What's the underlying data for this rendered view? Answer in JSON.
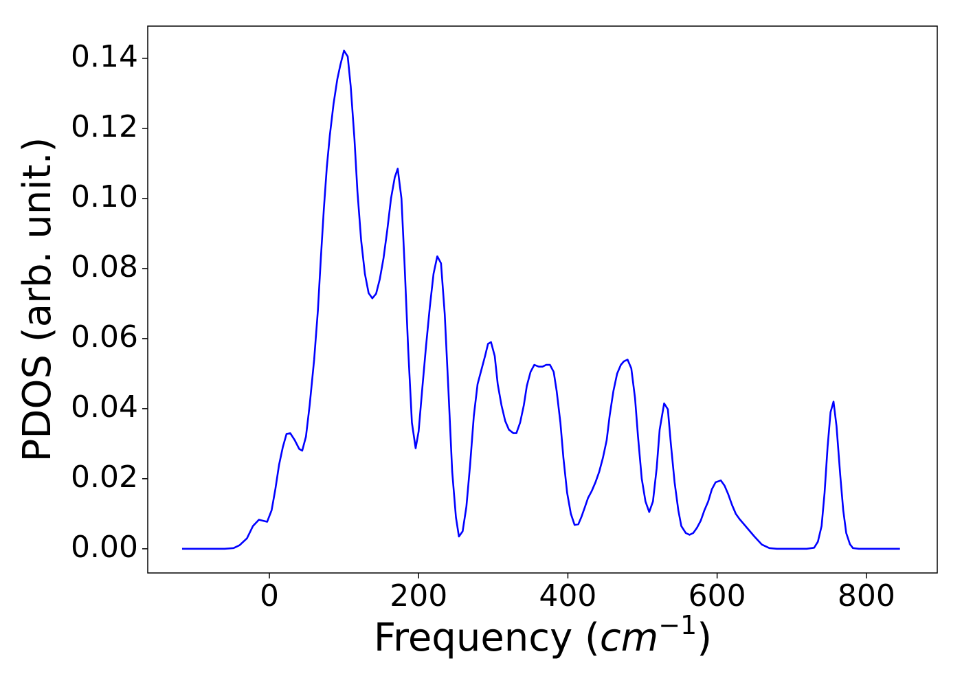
{
  "chart_data": {
    "type": "line",
    "ylabel": "PDOS (arb. unit.)",
    "xlabel_parts": {
      "text": "Frequency (",
      "math": "cm",
      "sup": "−1",
      "close": ")"
    },
    "x": [
      -117,
      -60,
      -48,
      -40,
      -30,
      -22,
      -14,
      -3,
      3,
      8,
      13,
      18,
      23,
      28,
      34,
      40,
      44,
      49,
      54,
      60,
      65,
      69,
      73,
      77,
      81,
      86,
      91,
      95,
      100,
      105,
      109,
      114,
      118,
      123,
      128,
      133,
      138,
      143,
      148,
      153,
      158,
      163,
      168,
      172,
      177,
      181,
      186,
      191,
      196,
      200,
      205,
      210,
      215,
      220,
      225,
      230,
      235,
      240,
      245,
      250,
      254,
      259,
      264,
      269,
      274,
      279,
      284,
      289,
      293,
      297,
      302,
      306,
      311,
      316,
      321,
      327,
      331,
      336,
      341,
      345,
      350,
      355,
      361,
      366,
      371,
      376,
      381,
      385,
      390,
      394,
      399,
      404,
      409,
      414,
      418,
      423,
      427,
      432,
      437,
      442,
      447,
      452,
      456,
      461,
      466,
      471,
      475,
      480,
      485,
      490,
      494,
      499,
      504,
      509,
      514,
      519,
      523,
      529,
      534,
      538,
      543,
      548,
      552,
      558,
      563,
      568,
      573,
      578,
      583,
      588,
      593,
      598,
      605,
      610,
      615,
      620,
      625,
      630,
      640,
      650,
      660,
      670,
      680,
      720,
      730,
      735,
      740,
      744,
      748,
      752,
      756,
      760,
      765,
      769,
      773,
      778,
      782,
      790,
      845
    ],
    "series": [
      {
        "color": "#0000ff",
        "values": [
          0,
          0,
          0.0002,
          0.001,
          0.003,
          0.0065,
          0.0083,
          0.0077,
          0.011,
          0.017,
          0.024,
          0.029,
          0.0328,
          0.033,
          0.031,
          0.0285,
          0.028,
          0.032,
          0.041,
          0.054,
          0.068,
          0.083,
          0.097,
          0.109,
          0.118,
          0.127,
          0.134,
          0.138,
          0.1422,
          0.1405,
          0.132,
          0.117,
          0.102,
          0.088,
          0.0785,
          0.073,
          0.0715,
          0.0728,
          0.077,
          0.083,
          0.091,
          0.1,
          0.106,
          0.1085,
          0.1,
          0.082,
          0.057,
          0.036,
          0.0287,
          0.0335,
          0.046,
          0.058,
          0.069,
          0.0785,
          0.0835,
          0.0815,
          0.067,
          0.045,
          0.022,
          0.009,
          0.0035,
          0.005,
          0.012,
          0.024,
          0.038,
          0.047,
          0.051,
          0.055,
          0.0585,
          0.059,
          0.055,
          0.047,
          0.041,
          0.0365,
          0.034,
          0.033,
          0.033,
          0.036,
          0.041,
          0.0465,
          0.0505,
          0.0525,
          0.052,
          0.052,
          0.0525,
          0.0525,
          0.0505,
          0.045,
          0.036,
          0.026,
          0.016,
          0.01,
          0.0068,
          0.007,
          0.009,
          0.012,
          0.0145,
          0.0165,
          0.019,
          0.022,
          0.026,
          0.031,
          0.038,
          0.045,
          0.05,
          0.0525,
          0.0535,
          0.054,
          0.0515,
          0.043,
          0.032,
          0.02,
          0.0135,
          0.0105,
          0.0135,
          0.023,
          0.034,
          0.0415,
          0.0398,
          0.03,
          0.019,
          0.011,
          0.0065,
          0.0045,
          0.004,
          0.0045,
          0.006,
          0.008,
          0.011,
          0.0135,
          0.017,
          0.019,
          0.0195,
          0.018,
          0.0155,
          0.0125,
          0.01,
          0.0085,
          0.006,
          0.0035,
          0.0012,
          0.0002,
          0,
          0,
          0.0003,
          0.002,
          0.0065,
          0.016,
          0.029,
          0.039,
          0.042,
          0.035,
          0.021,
          0.011,
          0.0045,
          0.0013,
          0.0002,
          0,
          0
        ]
      }
    ],
    "xlim": [
      -163,
      895
    ],
    "ylim": [
      -0.0069,
      0.1492
    ],
    "xticks": [
      0,
      200,
      400,
      600,
      800
    ],
    "yticks": [
      {
        "value": 0,
        "label": "0.00"
      },
      {
        "value": 0.02,
        "label": "0.02"
      },
      {
        "value": 0.04,
        "label": "0.04"
      },
      {
        "value": 0.06,
        "label": "0.06"
      },
      {
        "value": 0.08,
        "label": "0.08"
      },
      {
        "value": 0.1,
        "label": "0.10"
      },
      {
        "value": 0.12,
        "label": "0.12"
      },
      {
        "value": 0.14,
        "label": "0.14"
      }
    ]
  }
}
